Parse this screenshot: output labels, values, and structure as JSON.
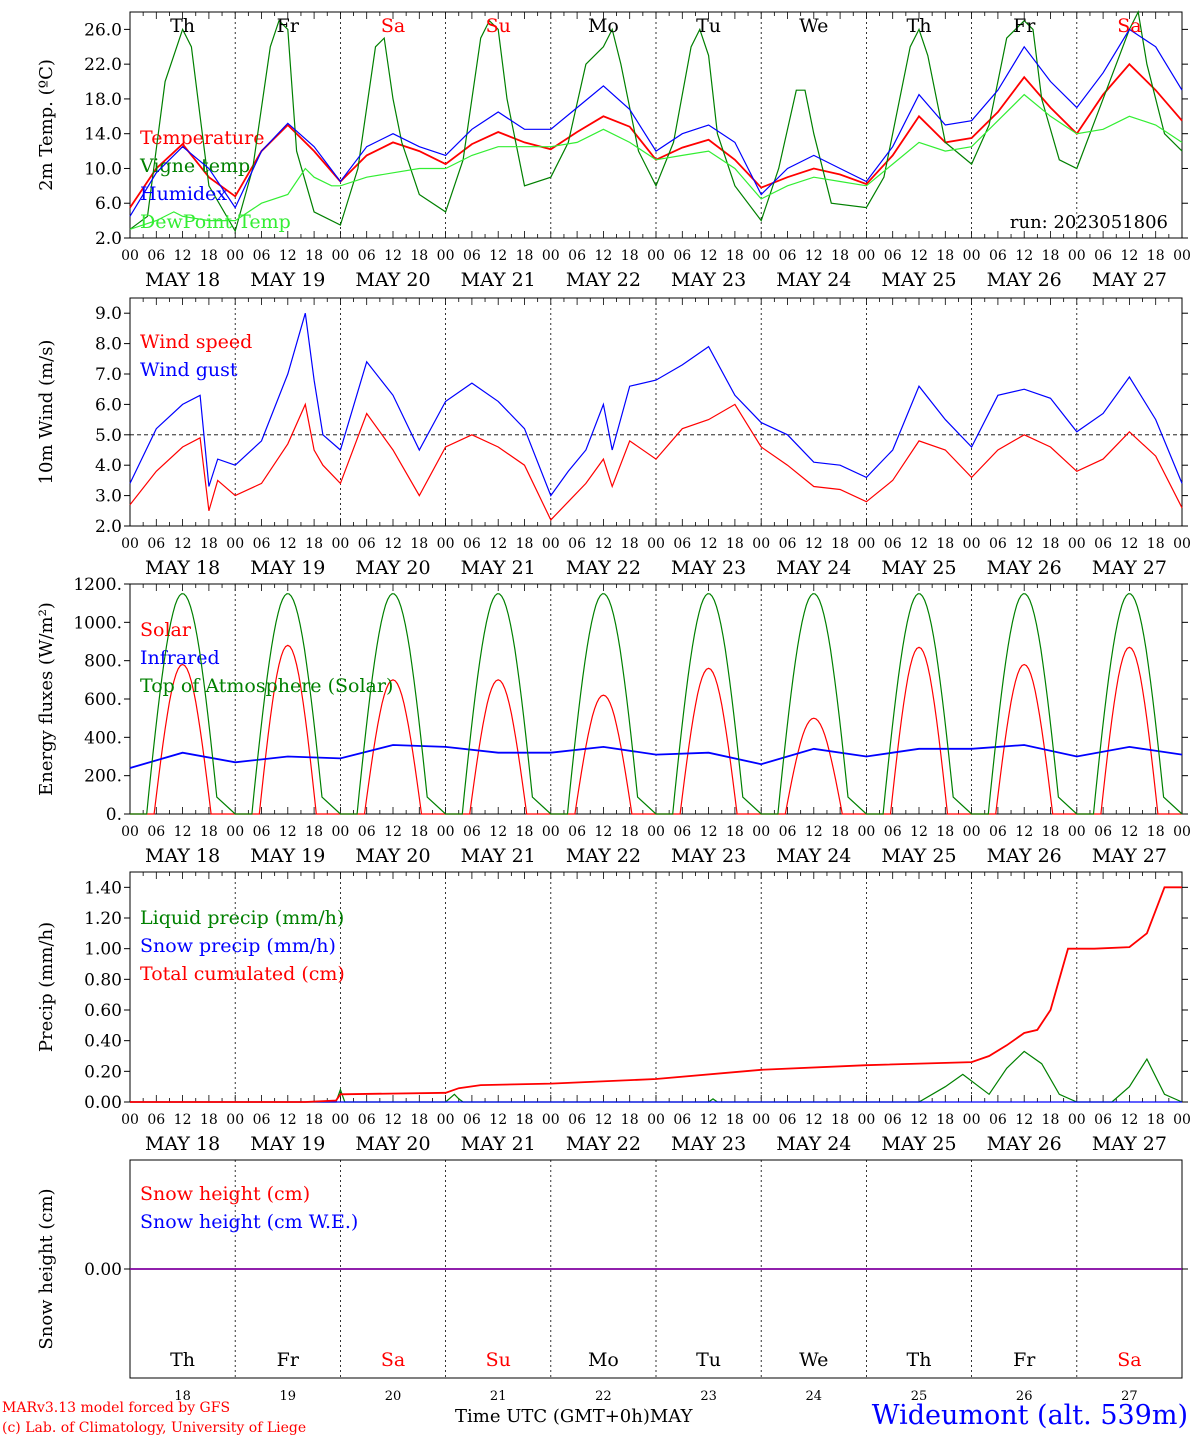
{
  "colors": {
    "red": "#ff0000",
    "green": "#008000",
    "blue": "#0000ff",
    "lightgreen": "#33ee33",
    "purple": "#8000a0",
    "black": "#000000"
  },
  "days": [
    {
      "name": "Th",
      "date": "MAY 18",
      "num": "18",
      "weekend": false
    },
    {
      "name": "Fr",
      "date": "MAY 19",
      "num": "19",
      "weekend": false
    },
    {
      "name": "Sa",
      "date": "MAY 20",
      "num": "20",
      "weekend": true
    },
    {
      "name": "Su",
      "date": "MAY 21",
      "num": "21",
      "weekend": true
    },
    {
      "name": "Mo",
      "date": "MAY 22",
      "num": "22",
      "weekend": false
    },
    {
      "name": "Tu",
      "date": "MAY 23",
      "num": "23",
      "weekend": false
    },
    {
      "name": "We",
      "date": "MAY 24",
      "num": "24",
      "weekend": false
    },
    {
      "name": "Th",
      "date": "MAY 25",
      "num": "25",
      "weekend": false
    },
    {
      "name": "Fr",
      "date": "MAY 26",
      "num": "26",
      "weekend": false
    },
    {
      "name": "Sa",
      "date": "MAY 27",
      "num": "27",
      "weekend": true
    }
  ],
  "hour_ticks": [
    "00",
    "06",
    "12",
    "18"
  ],
  "footer": {
    "model": "MARv3.13 model forced by GFS",
    "lab": "(c) Lab. of Climatology, University of Liege",
    "xlabel": "Time UTC (GMT+0h)",
    "month": "MAY",
    "station": "Wideumont (alt. 539m)"
  },
  "chart_data": [
    {
      "type": "line",
      "ylabel": "2m Temp. (ºC)",
      "ylim": [
        2,
        28
      ],
      "yticks": [
        "2.0",
        "6.0",
        "10.0",
        "14.0",
        "18.0",
        "22.0",
        "26.0"
      ],
      "annotation": "run: 2023051806",
      "x_unit": "hours since MAY 18 00 UTC",
      "series": [
        {
          "name": "Temperature",
          "color": "red",
          "x": [
            0,
            6,
            12,
            18,
            24,
            30,
            36,
            42,
            48,
            54,
            60,
            66,
            72,
            78,
            84,
            90,
            96,
            102,
            108,
            114,
            120,
            126,
            132,
            138,
            144,
            150,
            156,
            162,
            168,
            174,
            180,
            186,
            192,
            198,
            204,
            210,
            216,
            222,
            228,
            234,
            240
          ],
          "y": [
            5.5,
            10,
            12.8,
            9,
            6.8,
            12,
            15,
            12,
            8.5,
            11.5,
            13,
            12,
            10.5,
            12.8,
            14.2,
            13,
            12.2,
            14.2,
            16,
            14.8,
            11,
            12.4,
            13.3,
            11,
            7.8,
            9,
            10,
            9.3,
            8.2,
            11.5,
            16,
            13,
            13.5,
            16.5,
            20.5,
            17,
            14,
            18.5,
            22,
            19,
            15.5
          ]
        },
        {
          "name": "Vigne temp",
          "color": "green",
          "x": [
            0,
            4,
            8,
            12,
            14,
            16,
            18,
            24,
            28,
            32,
            34,
            36,
            38,
            42,
            48,
            52,
            56,
            58,
            60,
            62,
            66,
            72,
            76,
            80,
            82,
            84,
            86,
            90,
            96,
            100,
            104,
            108,
            110,
            112,
            116,
            120,
            124,
            128,
            130,
            132,
            134,
            138,
            144,
            148,
            152,
            154,
            156,
            160,
            168,
            172,
            178,
            180,
            182,
            186,
            192,
            196,
            200,
            204,
            206,
            208,
            212,
            216,
            222,
            228,
            230,
            232,
            236,
            240
          ],
          "y": [
            3,
            4.5,
            20,
            26,
            24,
            16,
            8,
            2.8,
            10,
            24,
            27,
            26,
            12,
            5,
            3.5,
            10,
            24,
            25,
            18,
            13,
            7,
            5,
            11,
            25,
            27,
            26,
            18,
            8,
            9,
            13,
            22,
            24,
            26,
            22,
            12,
            8,
            13,
            24,
            26,
            23,
            14,
            8,
            4,
            10,
            19,
            19,
            14,
            6,
            5.5,
            9,
            24,
            26,
            23,
            13,
            10.5,
            15,
            25,
            27,
            26,
            18,
            11,
            10,
            18,
            26,
            28,
            22,
            14,
            12
          ]
        },
        {
          "name": "Humidex",
          "color": "blue",
          "x": [
            0,
            6,
            12,
            18,
            24,
            30,
            36,
            42,
            48,
            54,
            60,
            66,
            72,
            78,
            84,
            90,
            96,
            102,
            108,
            114,
            120,
            126,
            132,
            138,
            144,
            150,
            156,
            162,
            168,
            174,
            180,
            186,
            192,
            198,
            204,
            210,
            216,
            222,
            228,
            234,
            240
          ],
          "y": [
            4.5,
            9.5,
            12.5,
            10,
            5.5,
            12,
            15.2,
            12.5,
            8.5,
            12.5,
            14,
            12.5,
            11.5,
            14.5,
            16.5,
            14.5,
            14.5,
            17,
            19.5,
            16.8,
            12,
            14,
            15,
            13,
            7,
            10,
            11.5,
            10,
            8.5,
            12.5,
            18.5,
            15,
            15.5,
            19,
            24,
            20,
            17,
            21,
            26,
            24,
            19
          ]
        },
        {
          "name": "DewPoint Temp",
          "color": "lightgreen",
          "x": [
            0,
            6,
            10,
            12,
            18,
            24,
            30,
            36,
            40,
            42,
            46,
            48,
            54,
            60,
            66,
            72,
            78,
            84,
            90,
            96,
            102,
            108,
            114,
            120,
            126,
            132,
            138,
            144,
            150,
            156,
            162,
            168,
            174,
            180,
            186,
            192,
            198,
            204,
            210,
            216,
            222,
            228,
            234,
            240
          ],
          "y": [
            3,
            4,
            5,
            4.5,
            4,
            4,
            6,
            7,
            10,
            9,
            8,
            8,
            9,
            9.5,
            10,
            10,
            11.5,
            12.5,
            12.5,
            12.5,
            13,
            14.5,
            13,
            11,
            11.5,
            12,
            10,
            6.5,
            8,
            9,
            8.5,
            8,
            10.5,
            13,
            12,
            12.5,
            15.5,
            18.5,
            16,
            14,
            14.5,
            16,
            15,
            13
          ]
        }
      ]
    },
    {
      "type": "line",
      "ylabel": "10m Wind (m/s)",
      "ylim": [
        2,
        9.5
      ],
      "yticks": [
        "2.0",
        "3.0",
        "4.0",
        "5.0",
        "6.0",
        "7.0",
        "8.0",
        "9.0"
      ],
      "reference_line": 5.0,
      "series": [
        {
          "name": "Wind speed",
          "color": "red",
          "x": [
            0,
            6,
            12,
            16,
            18,
            20,
            24,
            30,
            36,
            40,
            42,
            44,
            48,
            54,
            60,
            66,
            72,
            78,
            84,
            90,
            96,
            100,
            104,
            108,
            110,
            114,
            120,
            126,
            132,
            138,
            144,
            150,
            156,
            162,
            168,
            174,
            180,
            186,
            192,
            198,
            204,
            210,
            216,
            222,
            228,
            234,
            240
          ],
          "y": [
            2.7,
            3.8,
            4.6,
            4.9,
            2.5,
            3.5,
            3,
            3.4,
            4.7,
            6,
            4.5,
            4,
            3.4,
            5.7,
            4.5,
            3,
            4.6,
            5,
            4.6,
            4,
            2.2,
            2.8,
            3.4,
            4.2,
            3.3,
            4.8,
            4.2,
            5.2,
            5.5,
            6,
            4.6,
            4,
            3.3,
            3.2,
            2.8,
            3.5,
            4.8,
            4.5,
            3.6,
            4.5,
            5,
            4.6,
            3.8,
            4.2,
            5.1,
            4.3,
            2.6
          ]
        },
        {
          "name": "Wind gust",
          "color": "blue",
          "x": [
            0,
            6,
            12,
            16,
            18,
            20,
            24,
            30,
            36,
            40,
            42,
            44,
            48,
            54,
            60,
            66,
            72,
            78,
            84,
            90,
            96,
            100,
            104,
            108,
            110,
            114,
            120,
            126,
            132,
            138,
            144,
            150,
            156,
            162,
            168,
            174,
            180,
            186,
            192,
            198,
            204,
            210,
            216,
            222,
            228,
            234,
            240
          ],
          "y": [
            3.4,
            5.2,
            6,
            6.3,
            3.3,
            4.2,
            4,
            4.8,
            7,
            9,
            6.8,
            5,
            4.5,
            7.4,
            6.3,
            4.5,
            6.1,
            6.7,
            6.1,
            5.2,
            3,
            3.8,
            4.5,
            6,
            4.5,
            6.6,
            6.8,
            7.3,
            7.9,
            6.3,
            5.4,
            5,
            4.1,
            4,
            3.6,
            4.5,
            6.6,
            5.5,
            4.6,
            6.3,
            6.5,
            6.2,
            5.1,
            5.7,
            6.9,
            5.5,
            3.4
          ]
        }
      ]
    },
    {
      "type": "line",
      "ylabel": "Energy fluxes (W/m²)",
      "ylim": [
        0,
        1200
      ],
      "yticks": [
        "0.",
        "200.",
        "400.",
        "600.",
        "800.",
        "1000.",
        "1200."
      ],
      "series": [
        {
          "name": "Solar",
          "color": "red",
          "peaks": [
            {
              "t": 12,
              "v": 780
            },
            {
              "t": 36,
              "v": 880
            },
            {
              "t": 60,
              "v": 700
            },
            {
              "t": 84,
              "v": 700
            },
            {
              "t": 108,
              "v": 620
            },
            {
              "t": 132,
              "v": 760
            },
            {
              "t": 156,
              "v": 500
            },
            {
              "t": 180,
              "v": 870
            },
            {
              "t": 204,
              "v": 780
            },
            {
              "t": 228,
              "v": 870
            }
          ]
        },
        {
          "name": "Infrared",
          "color": "blue",
          "x": [
            0,
            12,
            24,
            36,
            48,
            60,
            72,
            84,
            96,
            108,
            120,
            132,
            144,
            156,
            168,
            180,
            192,
            204,
            216,
            228,
            240
          ],
          "y": [
            240,
            320,
            270,
            300,
            290,
            360,
            350,
            320,
            320,
            350,
            310,
            320,
            260,
            340,
            300,
            340,
            340,
            360,
            300,
            350,
            310
          ]
        },
        {
          "name": "Top of Atmosphere (Solar)",
          "color": "green",
          "peaks": [
            {
              "t": 12,
              "v": 1150
            },
            {
              "t": 36,
              "v": 1150
            },
            {
              "t": 60,
              "v": 1150
            },
            {
              "t": 84,
              "v": 1150
            },
            {
              "t": 108,
              "v": 1150
            },
            {
              "t": 132,
              "v": 1150
            },
            {
              "t": 156,
              "v": 1150
            },
            {
              "t": 180,
              "v": 1150
            },
            {
              "t": 204,
              "v": 1150
            },
            {
              "t": 228,
              "v": 1150
            }
          ]
        }
      ]
    },
    {
      "type": "line",
      "ylabel": "Precip (mm/h)",
      "ylim": [
        0,
        1.5
      ],
      "yticks": [
        "0.00",
        "0.20",
        "0.40",
        "0.60",
        "0.80",
        "1.00",
        "1.20",
        "1.40"
      ],
      "series": [
        {
          "name": "Liquid precip (mm/h)",
          "color": "green",
          "x": [
            0,
            40,
            47,
            48,
            49,
            72,
            74,
            75,
            76,
            120,
            132,
            133,
            134,
            180,
            186,
            190,
            196,
            200,
            204,
            208,
            212,
            216,
            220,
            224,
            228,
            232,
            236,
            240
          ],
          "y": [
            0,
            0,
            0,
            0.08,
            0,
            0,
            0.05,
            0.02,
            0,
            0,
            0,
            0.02,
            0,
            0,
            0.1,
            0.18,
            0.05,
            0.22,
            0.33,
            0.25,
            0.05,
            0,
            0,
            0,
            0.1,
            0.28,
            0.05,
            0
          ]
        },
        {
          "name": "Snow precip (mm/h)",
          "color": "blue",
          "x": [
            0,
            240
          ],
          "y": [
            0,
            0
          ]
        },
        {
          "name": "Total cumulated (cm)",
          "color": "red",
          "x": [
            0,
            40,
            47,
            48,
            72,
            75,
            80,
            96,
            120,
            144,
            168,
            192,
            196,
            200,
            204,
            207,
            210,
            214,
            220,
            228,
            232,
            236,
            240
          ],
          "y": [
            0,
            0,
            0.01,
            0.05,
            0.06,
            0.09,
            0.11,
            0.12,
            0.15,
            0.21,
            0.24,
            0.26,
            0.3,
            0.37,
            0.45,
            0.47,
            0.6,
            1.0,
            1.0,
            1.01,
            1.1,
            1.4,
            1.4
          ]
        }
      ]
    },
    {
      "type": "line",
      "ylabel": "Snow height (cm)",
      "ylim": [
        -1,
        1
      ],
      "yticks": [
        "0.00"
      ],
      "series": [
        {
          "name": "Snow height (cm)",
          "color": "red",
          "x": [
            0,
            240
          ],
          "y": [
            0,
            0
          ]
        },
        {
          "name": "Snow height (cm W.E.)",
          "color": "blue",
          "x": [
            0,
            240
          ],
          "y": [
            0,
            0
          ]
        }
      ]
    }
  ]
}
